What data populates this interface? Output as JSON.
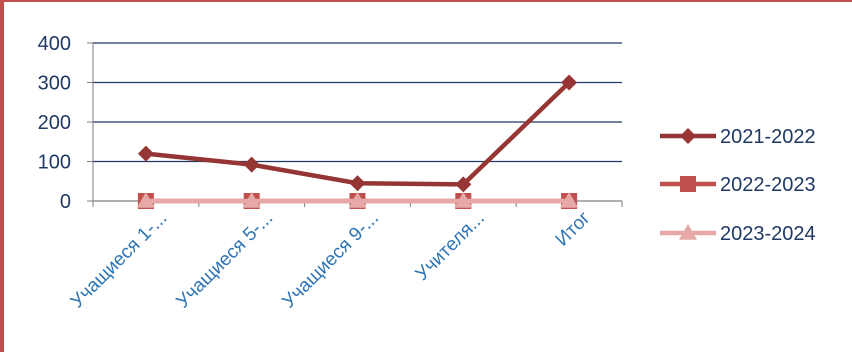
{
  "chart_data": {
    "type": "line",
    "categories": [
      "Учащиеся 1-...",
      "Учащиеся 5-...",
      "Учащиеся 9-...",
      "Учителя...",
      "Итог"
    ],
    "series": [
      {
        "name": "2021-2022",
        "values": [
          120,
          92,
          45,
          42,
          300
        ],
        "color": "#963634",
        "marker": "diamond"
      },
      {
        "name": "2022-2023",
        "values": [
          0,
          0,
          0,
          0,
          0
        ],
        "color": "#c0504d",
        "marker": "square"
      },
      {
        "name": "2023-2024",
        "values": [
          0,
          0,
          0,
          0,
          0
        ],
        "color": "#e6a9a7",
        "marker": "triangle"
      }
    ],
    "y_ticks": [
      "0",
      "100",
      "200",
      "300",
      "400"
    ],
    "ylim": [
      0,
      400
    ],
    "grid": true,
    "legend": "right",
    "title": "",
    "xlabel": "",
    "ylabel": ""
  }
}
